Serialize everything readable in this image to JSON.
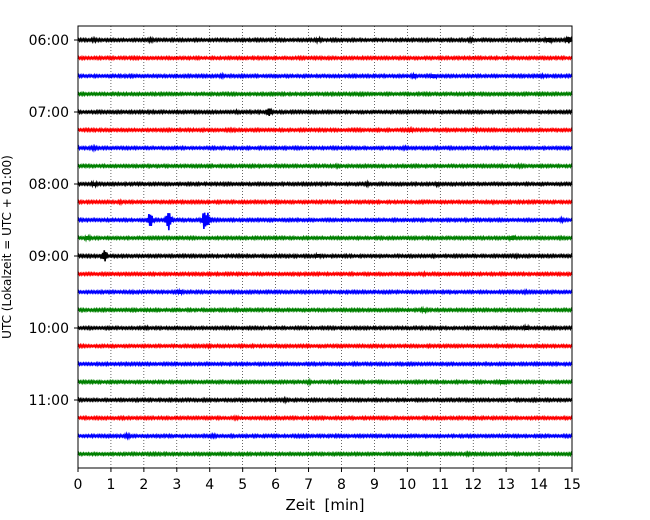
{
  "chart_data": {
    "type": "line",
    "chart_kind": "helicorder (stacked seismogram traces)",
    "xlabel": "Zeit  [min]",
    "ylabel": "UTC (Lokalzeit = UTC + 01:00)",
    "xlim": [
      0,
      15
    ],
    "x_ticks": [
      0,
      1,
      2,
      3,
      4,
      5,
      6,
      7,
      8,
      9,
      10,
      11,
      12,
      13,
      14,
      15
    ],
    "x_tick_labels": [
      "0",
      "1",
      "2",
      "3",
      "4",
      "5",
      "6",
      "7",
      "8",
      "9",
      "10",
      "11",
      "12",
      "13",
      "14",
      "15"
    ],
    "x_grid": "dotted vertical lines at each minute",
    "row_interval_min": 15,
    "y_tick_labels": [
      "06:00",
      "07:00",
      "08:00",
      "09:00",
      "10:00",
      "11:00"
    ],
    "y_tick_rows": [
      0,
      4,
      8,
      12,
      16,
      20
    ],
    "trace_colors": [
      "#000000",
      "#ff0000",
      "#0000ff",
      "#008000"
    ],
    "rows": [
      {
        "start": "06:00",
        "events": [
          {
            "t": 0.5,
            "amp": 0.35
          },
          {
            "t": 2.2,
            "amp": 0.35
          },
          {
            "t": 7.3,
            "amp": 0.4
          },
          {
            "t": 11.9,
            "amp": 0.4
          },
          {
            "t": 14.3,
            "amp": 0.55
          },
          {
            "t": 14.9,
            "amp": 0.7
          }
        ]
      },
      {
        "start": "06:15",
        "events": []
      },
      {
        "start": "06:30",
        "events": [
          {
            "t": 4.4,
            "amp": 0.35
          },
          {
            "t": 10.2,
            "amp": 0.5
          },
          {
            "t": 10.8,
            "amp": 0.5
          },
          {
            "t": 14.1,
            "amp": 0.3
          }
        ]
      },
      {
        "start": "06:45",
        "events": [
          {
            "t": 8.6,
            "amp": 0.3
          }
        ]
      },
      {
        "start": "07:00",
        "events": [
          {
            "t": 5.8,
            "amp": 0.8
          },
          {
            "t": 4.8,
            "amp": 0.3
          }
        ]
      },
      {
        "start": "07:15",
        "events": [
          {
            "t": 4.7,
            "amp": 0.3
          },
          {
            "t": 10.1,
            "amp": 0.4
          },
          {
            "t": 12.1,
            "amp": 0.3
          }
        ]
      },
      {
        "start": "07:30",
        "events": [
          {
            "t": 0.5,
            "amp": 0.45
          },
          {
            "t": 9.9,
            "amp": 0.3
          }
        ]
      },
      {
        "start": "07:45",
        "events": [
          {
            "t": 7.9,
            "amp": 0.3
          },
          {
            "t": 13.4,
            "amp": 0.3
          }
        ]
      },
      {
        "start": "08:00",
        "events": [
          {
            "t": 0.5,
            "amp": 0.5
          },
          {
            "t": 8.8,
            "amp": 0.35
          },
          {
            "t": 10.9,
            "amp": 0.35
          }
        ]
      },
      {
        "start": "08:15",
        "events": [
          {
            "t": 1.3,
            "amp": 0.3
          },
          {
            "t": 12.6,
            "amp": 0.3
          }
        ]
      },
      {
        "start": "08:30",
        "events": [
          {
            "t": 2.2,
            "amp": 1.8
          },
          {
            "t": 2.75,
            "amp": 2.2
          },
          {
            "t": 3.85,
            "amp": 2.2
          },
          {
            "t": 3.95,
            "amp": 1.6
          },
          {
            "t": 14.7,
            "amp": 0.35
          }
        ]
      },
      {
        "start": "08:45",
        "events": [
          {
            "t": 0.3,
            "amp": 0.45
          },
          {
            "t": 13.2,
            "amp": 0.6
          }
        ]
      },
      {
        "start": "09:00",
        "events": [
          {
            "t": 0.8,
            "amp": 1.2
          },
          {
            "t": 7.3,
            "amp": 0.45
          },
          {
            "t": 13.3,
            "amp": 0.3
          }
        ]
      },
      {
        "start": "09:15",
        "events": [
          {
            "t": 10.5,
            "amp": 0.3
          }
        ]
      },
      {
        "start": "09:30",
        "events": [
          {
            "t": 3.1,
            "amp": 0.45
          },
          {
            "t": 13.6,
            "amp": 0.3
          }
        ]
      },
      {
        "start": "09:45",
        "events": [
          {
            "t": 10.5,
            "amp": 0.4
          }
        ]
      },
      {
        "start": "10:00",
        "events": [
          {
            "t": 2.1,
            "amp": 0.3
          },
          {
            "t": 13.6,
            "amp": 0.45
          }
        ]
      },
      {
        "start": "10:15",
        "events": [
          {
            "t": 4.0,
            "amp": 0.3
          }
        ]
      },
      {
        "start": "10:30",
        "events": [
          {
            "t": 8.4,
            "amp": 0.3
          }
        ]
      },
      {
        "start": "10:45",
        "events": [
          {
            "t": 7.0,
            "amp": 0.35
          },
          {
            "t": 12.9,
            "amp": 0.55
          }
        ]
      },
      {
        "start": "11:00",
        "events": [
          {
            "t": 6.3,
            "amp": 0.35
          }
        ]
      },
      {
        "start": "11:15",
        "events": [
          {
            "t": 4.8,
            "amp": 0.3
          }
        ]
      },
      {
        "start": "11:30",
        "events": [
          {
            "t": 1.5,
            "amp": 0.45
          },
          {
            "t": 4.1,
            "amp": 0.3
          }
        ]
      },
      {
        "start": "11:45",
        "events": [
          {
            "t": 11.8,
            "amp": 0.3
          }
        ]
      }
    ]
  }
}
